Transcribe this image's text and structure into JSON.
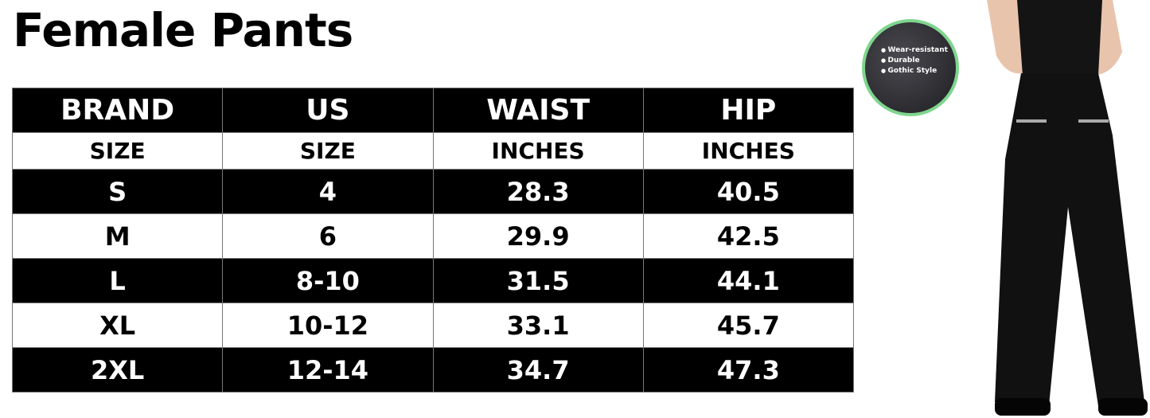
{
  "title": "Female Pants",
  "header_row_1": [
    "BRAND",
    "US",
    "WAIST",
    "HIP"
  ],
  "header_row_2": [
    "SIZE",
    "SIZE",
    "INCHES",
    "INCHES"
  ],
  "rows": [
    [
      "S",
      "4",
      "28.3",
      "40.5"
    ],
    [
      "M",
      "6",
      "29.9",
      "42.5"
    ],
    [
      "L",
      "8-10",
      "31.5",
      "44.1"
    ],
    [
      "XL",
      "10-12",
      "33.1",
      "45.7"
    ],
    [
      "2XL",
      "12-14",
      "34.7",
      "47.3"
    ]
  ],
  "badge": {
    "features": [
      "Wear-resistant",
      "Durable",
      "Gothic Style"
    ],
    "ring_color": "#7fd58e"
  }
}
